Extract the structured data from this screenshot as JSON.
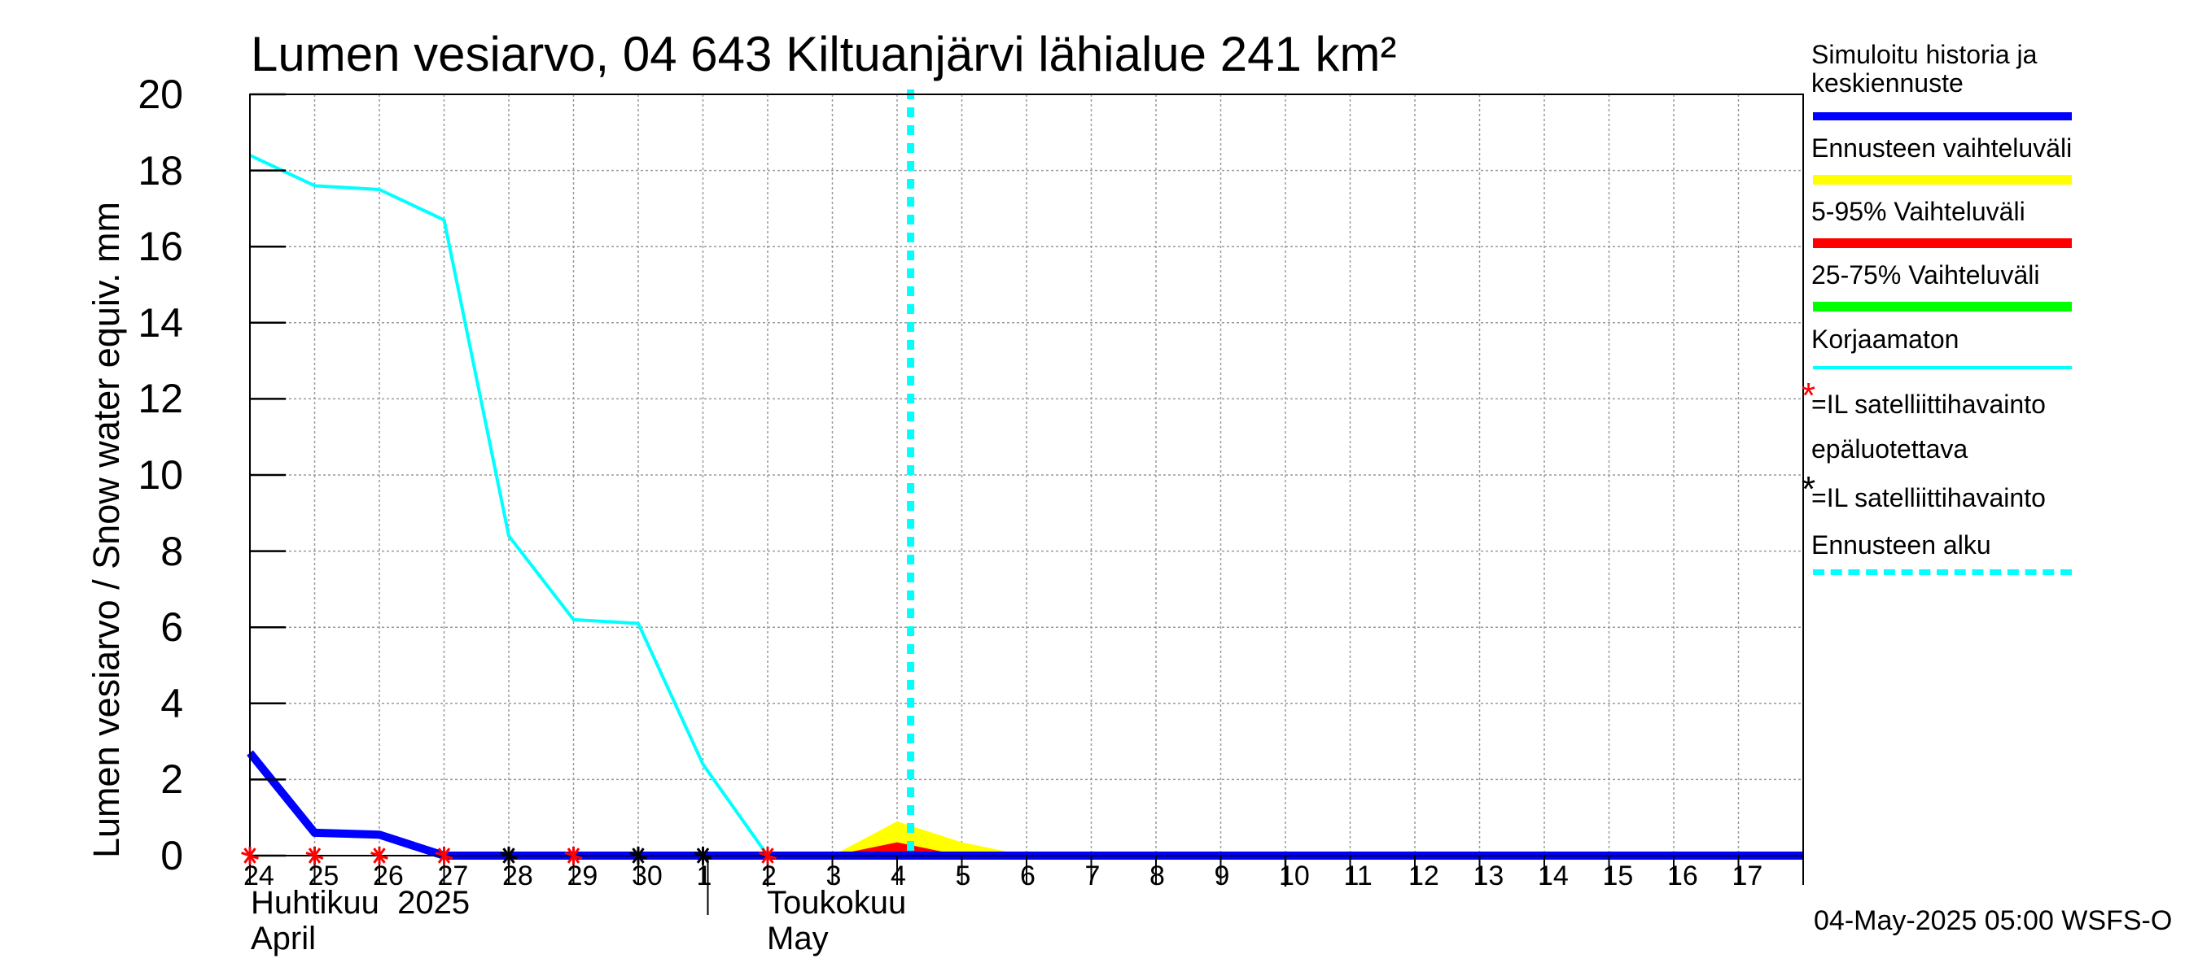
{
  "chart_data": {
    "type": "line",
    "title": "Lumen vesiarvo, 04 643 Kiltuanjärvi lähialue 241 km²",
    "ylabel": "Lumen vesiarvo / Snow water equiv.    mm",
    "ylim": [
      0,
      20
    ],
    "yticks": [
      "0",
      "2",
      "4",
      "6",
      "8",
      "10",
      "12",
      "14",
      "16",
      "18",
      "20"
    ],
    "xlim": [
      "2025-04-24",
      "2025-05-18"
    ],
    "xtick_labels": [
      "24",
      "25",
      "26",
      "27",
      "28",
      "29",
      "30",
      "1",
      "2",
      "3",
      "4",
      "5",
      "6",
      "7",
      "8",
      "9",
      "10",
      "11",
      "12",
      "13",
      "14",
      "15",
      "16",
      "17"
    ],
    "month_labels": [
      {
        "line1": "Huhtikuu  2025",
        "line2": "April"
      },
      {
        "line1": "Toukokuu",
        "line2": "May"
      }
    ],
    "grid": true,
    "forecast_start": "2025-05-04",
    "series": [
      {
        "name": "Korjaamaton",
        "color": "#00ffff",
        "x": [
          "2025-04-24",
          "2025-04-25",
          "2025-04-26",
          "2025-04-27",
          "2025-04-28",
          "2025-04-29",
          "2025-04-30",
          "2025-05-01",
          "2025-05-02"
        ],
        "y": [
          18.4,
          17.6,
          17.5,
          16.7,
          8.4,
          6.2,
          6.1,
          2.4,
          0.0
        ]
      },
      {
        "name": "Simuloitu historia ja keskiennuste",
        "color": "#0000ff",
        "x": [
          "2025-04-24",
          "2025-04-25",
          "2025-04-26",
          "2025-04-27",
          "2025-05-18"
        ],
        "y": [
          2.7,
          0.6,
          0.55,
          0.0,
          0.0
        ]
      },
      {
        "name": "Ennusteen vaihteluväli",
        "color": "#ffff00",
        "kind": "band",
        "x": [
          "2025-05-03",
          "2025-05-04",
          "2025-05-05",
          "2025-05-06"
        ],
        "y": [
          0.0,
          0.9,
          0.35,
          0.0
        ]
      },
      {
        "name": "5-95% Vaihteluväli",
        "color": "#ff0000",
        "kind": "band",
        "x": [
          "2025-05-03",
          "2025-05-04",
          "2025-05-05"
        ],
        "y": [
          0.0,
          0.35,
          0.0
        ]
      },
      {
        "name": "IL satelliittihavainto epäluotettava",
        "color": "#ff0000",
        "kind": "markers",
        "x": [
          "2025-04-24",
          "2025-04-25",
          "2025-04-26",
          "2025-04-27",
          "2025-04-29",
          "2025-05-02"
        ],
        "y": [
          0,
          0,
          0,
          0,
          0,
          0
        ]
      },
      {
        "name": "IL satelliittihavainto",
        "color": "#000000",
        "kind": "markers",
        "x": [
          "2025-04-28",
          "2025-04-30",
          "2025-05-01"
        ],
        "y": [
          0,
          0,
          0
        ]
      }
    ]
  },
  "legend": [
    {
      "label": "Simuloitu historia ja\nkeskiennuste",
      "color": "#0000ff",
      "style": "solid"
    },
    {
      "label": "Ennusteen vaihteluväli",
      "color": "#ffff00",
      "style": "solid"
    },
    {
      "label": "5-95% Vaihteluväli",
      "color": "#ff0000",
      "style": "solid"
    },
    {
      "label": "25-75% Vaihteluväli",
      "color": "#00ff00",
      "style": "solid"
    },
    {
      "label": "Korjaamaton",
      "color": "#00ffff",
      "style": "thin"
    },
    {
      "label": "=IL satelliittihavainto",
      "label2": "epäluotettava",
      "star": "*",
      "color": "#ff0000"
    },
    {
      "label": "=IL satelliittihavainto",
      "star": "*",
      "color": "#000000"
    },
    {
      "label": "Ennusteen alku",
      "color": "#00ffff",
      "style": "dashed"
    }
  ],
  "footer": "04-May-2025 05:00 WSFS-O"
}
